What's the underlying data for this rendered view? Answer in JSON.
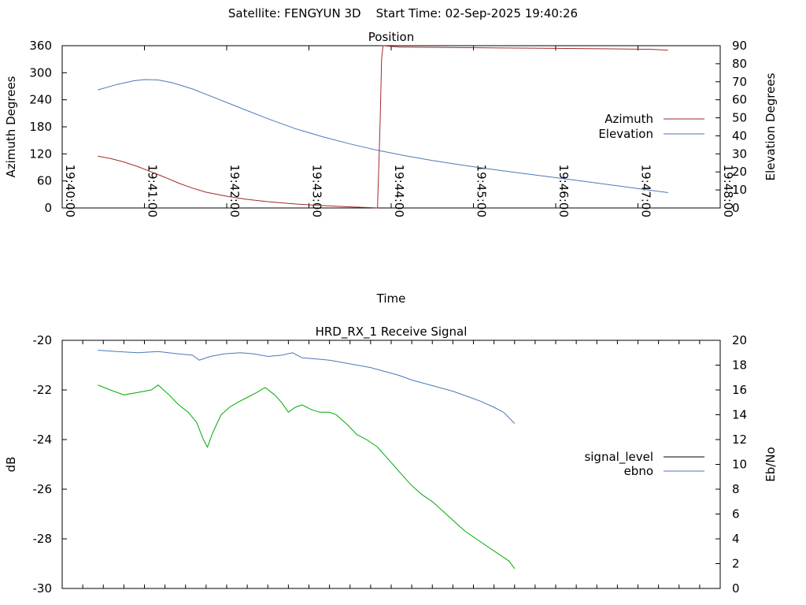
{
  "header": {
    "satellite_label": "Satellite: FENGYUN 3D",
    "start_time_label": "Start Time: 02-Sep-2025 19:40:26"
  },
  "chart_data": [
    {
      "type": "line",
      "title": "Position",
      "xlabel": "Time",
      "ylabel": "Azimuth Degrees",
      "y2label": "Elevation Degrees",
      "x_ticks": [
        "19:40:00",
        "19:41:00",
        "19:42:00",
        "19:43:00",
        "19:44:00",
        "19:45:00",
        "19:46:00",
        "19:47:00",
        "19:48:00"
      ],
      "xlim_seconds_after": [
        "19:40:00",
        0,
        480
      ],
      "ylim": [
        0,
        360
      ],
      "y_ticks": [
        0,
        60,
        120,
        180,
        240,
        300,
        360
      ],
      "y2lim": [
        0,
        90
      ],
      "y2_ticks": [
        0,
        10,
        20,
        30,
        40,
        50,
        60,
        70,
        80,
        90
      ],
      "grid": false,
      "legend": "right",
      "series": [
        {
          "name": "Azimuth",
          "axis": "y",
          "color": "#a52a2a",
          "points": [
            [
              26,
              115
            ],
            [
              35,
              110
            ],
            [
              45,
              102
            ],
            [
              55,
              92
            ],
            [
              65,
              80
            ],
            [
              75,
              68
            ],
            [
              85,
              55
            ],
            [
              95,
              44
            ],
            [
              105,
              35
            ],
            [
              120,
              26
            ],
            [
              135,
              19
            ],
            [
              150,
              14
            ],
            [
              165,
              10
            ],
            [
              180,
              7
            ],
            [
              195,
              4.5
            ],
            [
              210,
              2.5
            ],
            [
              220,
              1.2
            ],
            [
              228,
              0.3
            ],
            [
              230,
              0
            ],
            [
              231,
              95
            ],
            [
              232,
              200
            ],
            [
              233,
              330
            ],
            [
              234,
              360
            ],
            [
              246,
              357
            ],
            [
              280,
              356
            ],
            [
              320,
              355
            ],
            [
              360,
              354
            ],
            [
              400,
              353
            ],
            [
              430,
              352
            ],
            [
              442,
              350
            ]
          ]
        },
        {
          "name": "Elevation",
          "axis": "y2",
          "color": "#4a7ab8",
          "points": [
            [
              26,
              65.5
            ],
            [
              40,
              68.5
            ],
            [
              52,
              70.5
            ],
            [
              60,
              71.2
            ],
            [
              70,
              71
            ],
            [
              80,
              69.5
            ],
            [
              95,
              66
            ],
            [
              110,
              61.5
            ],
            [
              130,
              55.5
            ],
            [
              150,
              49.5
            ],
            [
              170,
              44
            ],
            [
              190,
              39.5
            ],
            [
              210,
              35.5
            ],
            [
              230,
              32
            ],
            [
              250,
              29
            ],
            [
              270,
              26.3
            ],
            [
              290,
              24
            ],
            [
              310,
              21.8
            ],
            [
              330,
              19.8
            ],
            [
              350,
              17.8
            ],
            [
              370,
              15.8
            ],
            [
              390,
              13.8
            ],
            [
              410,
              11.8
            ],
            [
              430,
              9.7
            ],
            [
              442,
              8.5
            ]
          ]
        }
      ]
    },
    {
      "type": "line",
      "title": "HRD_RX_1 Receive Signal",
      "xlabel": "",
      "ylabel": "dB",
      "y2label": "Eb/No",
      "xlim_seconds_after": [
        "19:40:00",
        0,
        480
      ],
      "ylim": [
        -30,
        -20
      ],
      "y_ticks": [
        -30,
        -28,
        -26,
        -24,
        -22,
        -20
      ],
      "y2lim": [
        0,
        20
      ],
      "y2_ticks": [
        0,
        2,
        4,
        6,
        8,
        10,
        12,
        14,
        16,
        18,
        20
      ],
      "x_minor_ticks_seconds": 15,
      "grid": false,
      "legend": "right",
      "series": [
        {
          "name": "signal_level",
          "axis": "y",
          "color": "#000000",
          "legend_color": "#000000",
          "line_color": "#00aa00",
          "points": [
            [
              26,
              -21.8
            ],
            [
              35,
              -22.0
            ],
            [
              45,
              -22.2
            ],
            [
              55,
              -22.1
            ],
            [
              65,
              -22.0
            ],
            [
              70,
              -21.8
            ],
            [
              78,
              -22.2
            ],
            [
              85,
              -22.6
            ],
            [
              92,
              -22.9
            ],
            [
              98,
              -23.3
            ],
            [
              103,
              -24.0
            ],
            [
              106,
              -24.3
            ],
            [
              110,
              -23.7
            ],
            [
              116,
              -23.0
            ],
            [
              122,
              -22.7
            ],
            [
              128,
              -22.5
            ],
            [
              135,
              -22.3
            ],
            [
              142,
              -22.1
            ],
            [
              148,
              -21.9
            ],
            [
              155,
              -22.2
            ],
            [
              160,
              -22.5
            ],
            [
              165,
              -22.9
            ],
            [
              170,
              -22.7
            ],
            [
              175,
              -22.6
            ],
            [
              182,
              -22.8
            ],
            [
              188,
              -22.9
            ],
            [
              195,
              -22.9
            ],
            [
              200,
              -23.0
            ],
            [
              208,
              -23.4
            ],
            [
              215,
              -23.8
            ],
            [
              222,
              -24.0
            ],
            [
              230,
              -24.3
            ],
            [
              238,
              -24.8
            ],
            [
              246,
              -25.3
            ],
            [
              254,
              -25.8
            ],
            [
              262,
              -26.2
            ],
            [
              270,
              -26.5
            ],
            [
              278,
              -26.9
            ],
            [
              286,
              -27.3
            ],
            [
              294,
              -27.7
            ],
            [
              302,
              -28.0
            ],
            [
              310,
              -28.3
            ],
            [
              318,
              -28.6
            ],
            [
              326,
              -28.9
            ],
            [
              330,
              -29.2
            ]
          ]
        },
        {
          "name": "ebno",
          "axis": "y2",
          "color": "#4a7ab8",
          "points": [
            [
              26,
              19.2
            ],
            [
              40,
              19.1
            ],
            [
              55,
              19.0
            ],
            [
              70,
              19.1
            ],
            [
              85,
              18.9
            ],
            [
              95,
              18.8
            ],
            [
              100,
              18.4
            ],
            [
              108,
              18.7
            ],
            [
              118,
              18.9
            ],
            [
              130,
              19.0
            ],
            [
              140,
              18.9
            ],
            [
              150,
              18.7
            ],
            [
              160,
              18.8
            ],
            [
              168,
              19.0
            ],
            [
              175,
              18.6
            ],
            [
              185,
              18.5
            ],
            [
              195,
              18.4
            ],
            [
              205,
              18.2
            ],
            [
              215,
              18.0
            ],
            [
              225,
              17.8
            ],
            [
              235,
              17.5
            ],
            [
              245,
              17.2
            ],
            [
              255,
              16.8
            ],
            [
              265,
              16.5
            ],
            [
              275,
              16.2
            ],
            [
              285,
              15.9
            ],
            [
              295,
              15.5
            ],
            [
              305,
              15.1
            ],
            [
              315,
              14.6
            ],
            [
              322,
              14.2
            ],
            [
              330,
              13.3
            ]
          ]
        }
      ]
    }
  ]
}
